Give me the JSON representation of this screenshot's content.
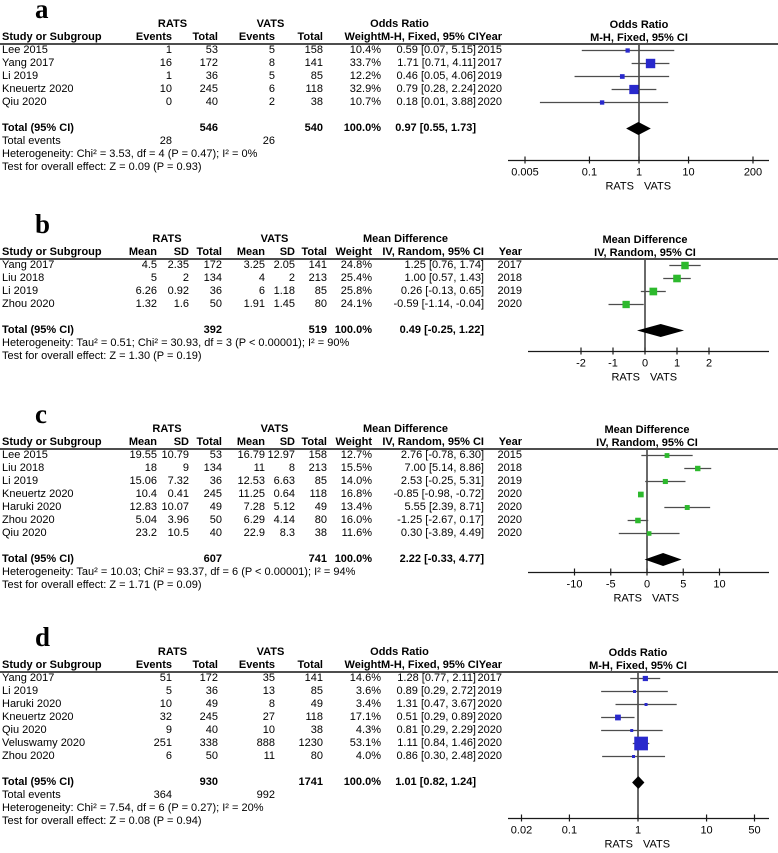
{
  "chart_data": [
    {
      "panel": "a",
      "type": "forest",
      "outcome_measure": "Odds Ratio",
      "method": "M-H, Fixed, 95% CI",
      "data_kind": "dichotomous",
      "group_headers": [
        "RATS",
        "VATS"
      ],
      "column_headers": [
        "Study or Subgroup",
        "Events",
        "Total",
        "Events",
        "Total",
        "Weight",
        "M-H, Fixed, 95% CI",
        "Year"
      ],
      "studies": [
        {
          "study": "Lee 2015",
          "cells": [
            "1",
            "53",
            "5",
            "158"
          ],
          "weight": "10.4%",
          "effect": "0.59 [0.07, 5.15]",
          "year": "2015",
          "est": 0.59,
          "lo": 0.07,
          "hi": 5.15,
          "w": 10.4
        },
        {
          "study": "Yang 2017",
          "cells": [
            "16",
            "172",
            "8",
            "141"
          ],
          "weight": "33.7%",
          "effect": "1.71 [0.71, 4.11]",
          "year": "2017",
          "est": 1.71,
          "lo": 0.71,
          "hi": 4.11,
          "w": 33.7
        },
        {
          "study": "Li 2019",
          "cells": [
            "1",
            "36",
            "5",
            "85"
          ],
          "weight": "12.2%",
          "effect": "0.46 [0.05, 4.06]",
          "year": "2019",
          "est": 0.46,
          "lo": 0.05,
          "hi": 4.06,
          "w": 12.2
        },
        {
          "study": "Kneuertz 2020",
          "cells": [
            "10",
            "245",
            "6",
            "118"
          ],
          "weight": "32.9%",
          "effect": "0.79 [0.28, 2.24]",
          "year": "2020",
          "est": 0.79,
          "lo": 0.28,
          "hi": 2.24,
          "w": 32.9
        },
        {
          "study": "Qiu 2020",
          "cells": [
            "0",
            "40",
            "2",
            "38"
          ],
          "weight": "10.7%",
          "effect": "0.18 [0.01, 3.88]",
          "year": "2020",
          "est": 0.18,
          "lo": 0.01,
          "hi": 3.88,
          "w": 10.7
        }
      ],
      "total": {
        "label": "Total (95% CI)",
        "totals": [
          "546",
          "540"
        ],
        "weight": "100.0%",
        "effect": "0.97 [0.55, 1.73]",
        "est": 0.97,
        "lo": 0.55,
        "hi": 1.73
      },
      "total_events": {
        "label": "Total events",
        "values": [
          "28",
          "26"
        ]
      },
      "heterogeneity": "Heterogeneity: Chi² = 3.53, df = 4 (P = 0.47); I² = 0%",
      "overall_effect": "Test for overall effect: Z = 0.09 (P = 0.93)",
      "axis": {
        "scale": "log",
        "tick_values": [
          0.005,
          0.1,
          1,
          10,
          200
        ],
        "tick_labels": [
          "0.005",
          "0.1",
          "1",
          "10",
          "200"
        ],
        "null_value": 1,
        "xlim": [
          0.005,
          200
        ],
        "xlabel_left": "RATS",
        "xlabel_right": "VATS"
      },
      "marker_color": "#2929cc",
      "diamond_color": "#000000"
    },
    {
      "panel": "b",
      "type": "forest",
      "outcome_measure": "Mean Difference",
      "method": "IV, Random, 95% CI",
      "data_kind": "continuous",
      "group_headers": [
        "RATS",
        "VATS"
      ],
      "column_headers": [
        "Study or Subgroup",
        "Mean",
        "SD",
        "Total",
        "Mean",
        "SD",
        "Total",
        "Weight",
        "IV, Random, 95% CI",
        "Year"
      ],
      "studies": [
        {
          "study": "Yang 2017",
          "cells": [
            "4.5",
            "2.35",
            "172",
            "3.25",
            "2.05",
            "141"
          ],
          "weight": "24.8%",
          "effect": "1.25 [0.76, 1.74]",
          "year": "2017",
          "est": 1.25,
          "lo": 0.76,
          "hi": 1.74,
          "w": 24.8
        },
        {
          "study": "Liu 2018",
          "cells": [
            "5",
            "2",
            "134",
            "4",
            "2",
            "213"
          ],
          "weight": "25.4%",
          "effect": "1.00 [0.57, 1.43]",
          "year": "2018",
          "est": 1.0,
          "lo": 0.57,
          "hi": 1.43,
          "w": 25.4
        },
        {
          "study": "Li 2019",
          "cells": [
            "6.26",
            "0.92",
            "36",
            "6",
            "1.18",
            "85"
          ],
          "weight": "25.8%",
          "effect": "0.26 [-0.13, 0.65]",
          "year": "2019",
          "est": 0.26,
          "lo": -0.13,
          "hi": 0.65,
          "w": 25.8
        },
        {
          "study": "Zhou 2020",
          "cells": [
            "1.32",
            "1.6",
            "50",
            "1.91",
            "1.45",
            "80"
          ],
          "weight": "24.1%",
          "effect": "-0.59 [-1.14, -0.04]",
          "year": "2020",
          "est": -0.59,
          "lo": -1.14,
          "hi": -0.04,
          "w": 24.1
        }
      ],
      "total": {
        "label": "Total (95% CI)",
        "totals": [
          "392",
          "519"
        ],
        "weight": "100.0%",
        "effect": "0.49 [-0.25, 1.22]",
        "est": 0.49,
        "lo": -0.25,
        "hi": 1.22
      },
      "total_events": null,
      "heterogeneity": "Heterogeneity: Tau² = 0.51; Chi² = 30.93, df = 3 (P < 0.00001); I² = 90%",
      "overall_effect": "Test for overall effect: Z = 1.30 (P = 0.19)",
      "axis": {
        "scale": "linear",
        "tick_values": [
          -2,
          -1,
          0,
          1,
          2
        ],
        "tick_labels": [
          "-2",
          "-1",
          "0",
          "1",
          "2"
        ],
        "null_value": 0,
        "xlim": [
          -2,
          2
        ],
        "xlabel_left": "RATS",
        "xlabel_right": "VATS"
      },
      "marker_color": "#2db92d",
      "diamond_color": "#000000"
    },
    {
      "panel": "c",
      "type": "forest",
      "outcome_measure": "Mean Difference",
      "method": "IV, Random, 95% CI",
      "data_kind": "continuous",
      "group_headers": [
        "RATS",
        "VATS"
      ],
      "column_headers": [
        "Study or Subgroup",
        "Mean",
        "SD",
        "Total",
        "Mean",
        "SD",
        "Total",
        "Weight",
        "IV, Random, 95% CI",
        "Year"
      ],
      "studies": [
        {
          "study": "Lee 2015",
          "cells": [
            "19.55",
            "10.79",
            "53",
            "16.79",
            "12.97",
            "158"
          ],
          "weight": "12.7%",
          "effect": "2.76 [-0.78, 6.30]",
          "year": "2015",
          "est": 2.76,
          "lo": -0.78,
          "hi": 6.3,
          "w": 12.7
        },
        {
          "study": "Liu 2018",
          "cells": [
            "18",
            "9",
            "134",
            "11",
            "8",
            "213"
          ],
          "weight": "15.5%",
          "effect": "7.00 [5.14, 8.86]",
          "year": "2018",
          "est": 7.0,
          "lo": 5.14,
          "hi": 8.86,
          "w": 15.5
        },
        {
          "study": "Li 2019",
          "cells": [
            "15.06",
            "7.32",
            "36",
            "12.53",
            "6.63",
            "85"
          ],
          "weight": "14.0%",
          "effect": "2.53 [-0.25, 5.31]",
          "year": "2019",
          "est": 2.53,
          "lo": -0.25,
          "hi": 5.31,
          "w": 14.0
        },
        {
          "study": "Kneuertz 2020",
          "cells": [
            "10.4",
            "0.41",
            "245",
            "11.25",
            "0.64",
            "118"
          ],
          "weight": "16.8%",
          "effect": "-0.85 [-0.98, -0.72]",
          "year": "2020",
          "est": -0.85,
          "lo": -0.98,
          "hi": -0.72,
          "w": 16.8
        },
        {
          "study": "Haruki 2020",
          "cells": [
            "12.83",
            "10.07",
            "49",
            "7.28",
            "5.12",
            "49"
          ],
          "weight": "13.4%",
          "effect": "5.55 [2.39, 8.71]",
          "year": "2020",
          "est": 5.55,
          "lo": 2.39,
          "hi": 8.71,
          "w": 13.4
        },
        {
          "study": "Zhou 2020",
          "cells": [
            "5.04",
            "3.96",
            "50",
            "6.29",
            "4.14",
            "80"
          ],
          "weight": "16.0%",
          "effect": "-1.25 [-2.67, 0.17]",
          "year": "2020",
          "est": -1.25,
          "lo": -2.67,
          "hi": 0.17,
          "w": 16.0
        },
        {
          "study": "Qiu 2020",
          "cells": [
            "23.2",
            "10.5",
            "40",
            "22.9",
            "8.3",
            "38"
          ],
          "weight": "11.6%",
          "effect": "0.30 [-3.89, 4.49]",
          "year": "2020",
          "est": 0.3,
          "lo": -3.89,
          "hi": 4.49,
          "w": 11.6
        }
      ],
      "total": {
        "label": "Total (95% CI)",
        "totals": [
          "607",
          "741"
        ],
        "weight": "100.0%",
        "effect": "2.22 [-0.33, 4.77]",
        "est": 2.22,
        "lo": -0.33,
        "hi": 4.77
      },
      "total_events": null,
      "heterogeneity": "Heterogeneity: Tau² = 10.03; Chi² = 93.37, df = 6 (P < 0.00001); I² = 94%",
      "overall_effect": "Test for overall effect: Z = 1.71 (P = 0.09)",
      "axis": {
        "scale": "linear",
        "tick_values": [
          -10,
          -5,
          0,
          5,
          10
        ],
        "tick_labels": [
          "-10",
          "-5",
          "0",
          "5",
          "10"
        ],
        "null_value": 0,
        "xlim": [
          -10,
          10
        ],
        "xlabel_left": "RATS",
        "xlabel_right": "VATS"
      },
      "marker_color": "#2db92d",
      "diamond_color": "#000000"
    },
    {
      "panel": "d",
      "type": "forest",
      "outcome_measure": "Odds Ratio",
      "method": "M-H, Fixed, 95% CI",
      "data_kind": "dichotomous",
      "group_headers": [
        "RATS",
        "VATS"
      ],
      "column_headers": [
        "Study or Subgroup",
        "Events",
        "Total",
        "Events",
        "Total",
        "Weight",
        "M-H, Fixed, 95% CI",
        "Year"
      ],
      "studies": [
        {
          "study": "Yang 2017",
          "cells": [
            "51",
            "172",
            "35",
            "141"
          ],
          "weight": "14.6%",
          "effect": "1.28 [0.77, 2.11]",
          "year": "2017",
          "est": 1.28,
          "lo": 0.77,
          "hi": 2.11,
          "w": 14.6
        },
        {
          "study": "Li 2019",
          "cells": [
            "5",
            "36",
            "13",
            "85"
          ],
          "weight": "3.6%",
          "effect": "0.89 [0.29, 2.72]",
          "year": "2019",
          "est": 0.89,
          "lo": 0.29,
          "hi": 2.72,
          "w": 3.6
        },
        {
          "study": "Haruki 2020",
          "cells": [
            "10",
            "49",
            "8",
            "49"
          ],
          "weight": "3.4%",
          "effect": "1.31 [0.47, 3.67]",
          "year": "2020",
          "est": 1.31,
          "lo": 0.47,
          "hi": 3.67,
          "w": 3.4
        },
        {
          "study": "Kneuertz 2020",
          "cells": [
            "32",
            "245",
            "27",
            "118"
          ],
          "weight": "17.1%",
          "effect": "0.51 [0.29, 0.89]",
          "year": "2020",
          "est": 0.51,
          "lo": 0.29,
          "hi": 0.89,
          "w": 17.1
        },
        {
          "study": "Qiu 2020",
          "cells": [
            "9",
            "40",
            "10",
            "38"
          ],
          "weight": "4.3%",
          "effect": "0.81 [0.29, 2.29]",
          "year": "2020",
          "est": 0.81,
          "lo": 0.29,
          "hi": 2.29,
          "w": 4.3
        },
        {
          "study": "Veluswamy 2020",
          "cells": [
            "251",
            "338",
            "888",
            "1230"
          ],
          "weight": "53.1%",
          "effect": "1.11 [0.84, 1.46]",
          "year": "2020",
          "est": 1.11,
          "lo": 0.84,
          "hi": 1.46,
          "w": 53.1
        },
        {
          "study": "Zhou 2020",
          "cells": [
            "6",
            "50",
            "11",
            "80"
          ],
          "weight": "4.0%",
          "effect": "0.86 [0.30, 2.48]",
          "year": "2020",
          "est": 0.86,
          "lo": 0.3,
          "hi": 2.48,
          "w": 4.0
        }
      ],
      "total": {
        "label": "Total (95% CI)",
        "totals": [
          "930",
          "1741"
        ],
        "weight": "100.0%",
        "effect": "1.01 [0.82, 1.24]",
        "est": 1.01,
        "lo": 0.82,
        "hi": 1.24
      },
      "total_events": {
        "label": "Total events",
        "values": [
          "364",
          "992"
        ]
      },
      "heterogeneity": "Heterogeneity: Chi² = 7.54, df = 6 (P = 0.27); I² = 20%",
      "overall_effect": "Test for overall effect: Z = 0.08 (P = 0.94)",
      "axis": {
        "scale": "log",
        "tick_values": [
          0.02,
          0.1,
          1,
          10,
          50
        ],
        "tick_labels": [
          "0.02",
          "0.1",
          "1",
          "10",
          "50"
        ],
        "null_value": 1,
        "xlim": [
          0.02,
          50
        ],
        "xlabel_left": "RATS",
        "xlabel_right": "VATS"
      },
      "marker_color": "#2929cc",
      "diamond_color": "#000000"
    }
  ]
}
